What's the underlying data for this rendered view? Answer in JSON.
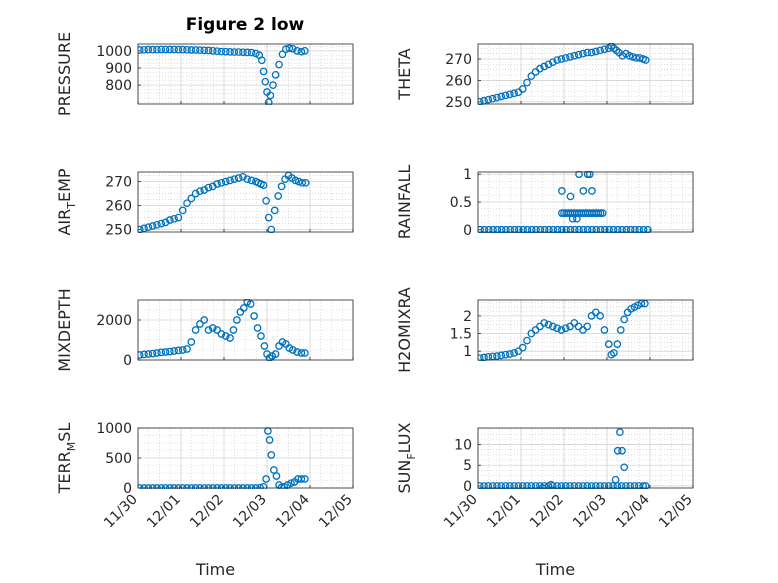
{
  "figure": {
    "title": "Figure 2 low",
    "marker_color": "#0072BD"
  },
  "chart_data": [
    {
      "type": "scatter",
      "ylabel": "PRESSURE",
      "ylim": [
        690,
        1040
      ],
      "yticks": [
        800,
        900,
        1000
      ],
      "xlim": [
        0,
        5
      ],
      "xlabel": "",
      "grid": true,
      "minor_grid": true,
      "x": [
        0.04,
        0.14,
        0.24,
        0.34,
        0.44,
        0.54,
        0.64,
        0.74,
        0.84,
        0.94,
        1.04,
        1.14,
        1.24,
        1.34,
        1.44,
        1.54,
        1.64,
        1.74,
        1.84,
        1.94,
        2.04,
        2.14,
        2.24,
        2.34,
        2.44,
        2.54,
        2.64,
        2.74,
        2.82,
        2.88,
        2.92,
        2.96,
        3.0,
        3.04,
        3.08,
        3.14,
        3.2,
        3.28,
        3.36,
        3.44,
        3.52,
        3.6,
        3.7,
        3.8,
        3.88
      ],
      "y": [
        1005,
        1006,
        1007,
        1007,
        1007,
        1008,
        1008,
        1008,
        1008,
        1007,
        1007,
        1006,
        1005,
        1005,
        1004,
        1003,
        1002,
        1000,
        998,
        996,
        995,
        994,
        993,
        993,
        992,
        991,
        990,
        985,
        975,
        945,
        880,
        820,
        760,
        700,
        740,
        800,
        860,
        920,
        980,
        1010,
        1015,
        1012,
        1000,
        995,
        1000
      ]
    },
    {
      "type": "scatter",
      "ylabel": "THETA",
      "ylim": [
        249,
        277
      ],
      "yticks": [
        250,
        260,
        270
      ],
      "xlim": [
        0,
        5
      ],
      "xlabel": "",
      "grid": true,
      "minor_grid": true,
      "x": [
        0.04,
        0.14,
        0.24,
        0.34,
        0.44,
        0.54,
        0.64,
        0.74,
        0.84,
        0.94,
        1.04,
        1.14,
        1.24,
        1.34,
        1.44,
        1.54,
        1.64,
        1.74,
        1.84,
        1.94,
        2.04,
        2.14,
        2.24,
        2.34,
        2.44,
        2.54,
        2.64,
        2.74,
        2.84,
        2.94,
        3.04,
        3.1,
        3.16,
        3.22,
        3.28,
        3.36,
        3.44,
        3.52,
        3.6,
        3.68,
        3.76,
        3.84,
        3.9
      ],
      "y": [
        250,
        250.5,
        251,
        251.5,
        252,
        252.5,
        253,
        253.5,
        254,
        254.5,
        256,
        259,
        262,
        264,
        265.5,
        266.5,
        267.5,
        268.5,
        269.5,
        270,
        270.5,
        271,
        271.5,
        272,
        272.5,
        273,
        273,
        273.5,
        274,
        274.5,
        275,
        276,
        275,
        274,
        273,
        271.5,
        272.5,
        271.5,
        271,
        270.5,
        270.5,
        270,
        269.5
      ]
    },
    {
      "type": "scatter",
      "ylabel": "AIR",
      "ylabel_sub": "T",
      "ylabel_rest": "EMP",
      "ylim": [
        249,
        274
      ],
      "yticks": [
        250,
        260,
        270
      ],
      "xlim": [
        0,
        5
      ],
      "xlabel": "",
      "grid": true,
      "minor_grid": true,
      "x": [
        0.04,
        0.14,
        0.24,
        0.34,
        0.44,
        0.54,
        0.64,
        0.74,
        0.84,
        0.94,
        1.04,
        1.14,
        1.24,
        1.34,
        1.44,
        1.54,
        1.64,
        1.74,
        1.84,
        1.94,
        2.04,
        2.14,
        2.24,
        2.34,
        2.44,
        2.54,
        2.64,
        2.74,
        2.8,
        2.86,
        2.92,
        2.98,
        3.04,
        3.1,
        3.18,
        3.26,
        3.34,
        3.42,
        3.5,
        3.58,
        3.66,
        3.74,
        3.82,
        3.9
      ],
      "y": [
        250,
        250.5,
        251,
        251.5,
        252,
        252.5,
        253,
        254,
        254.5,
        255,
        258,
        261,
        263,
        265,
        266,
        266.5,
        267.5,
        268,
        269,
        269.5,
        270,
        270.5,
        271,
        271.5,
        272,
        271,
        270.5,
        270,
        269.5,
        269,
        268.5,
        262,
        255,
        250,
        258,
        264,
        268,
        271,
        272.5,
        271.5,
        270.5,
        270,
        269.5,
        269.5
      ]
    },
    {
      "type": "scatter",
      "ylabel": "RAINFALL",
      "ylim": [
        -0.04,
        1.04
      ],
      "yticks": [
        0,
        0.5,
        1
      ],
      "xlim": [
        0,
        5
      ],
      "xlabel": "",
      "grid": true,
      "minor_grid": true,
      "x": [
        0.05,
        0.15,
        0.25,
        0.35,
        0.45,
        0.55,
        0.65,
        0.75,
        0.85,
        0.95,
        1.05,
        1.15,
        1.25,
        1.35,
        1.45,
        1.55,
        1.65,
        1.75,
        1.85,
        1.95,
        2.05,
        2.15,
        2.25,
        2.35,
        2.45,
        2.55,
        2.65,
        2.75,
        2.85,
        2.95,
        3.05,
        3.15,
        3.25,
        3.35,
        3.45,
        3.55,
        3.65,
        3.75,
        3.85,
        3.95,
        1.95,
        2.0,
        2.05,
        2.1,
        2.15,
        2.2,
        2.25,
        2.3,
        2.35,
        2.4,
        2.45,
        2.5,
        2.55,
        2.6,
        2.65,
        2.7,
        2.75,
        2.8,
        2.85,
        2.9,
        1.95,
        2.15,
        2.35,
        2.45,
        2.55,
        2.6,
        2.65,
        2.3,
        2.2
      ],
      "y": [
        0,
        0,
        0,
        0,
        0,
        0,
        0,
        0,
        0,
        0,
        0,
        0,
        0,
        0,
        0,
        0,
        0,
        0,
        0,
        0,
        0,
        0,
        0,
        0,
        0,
        0,
        0,
        0,
        0,
        0,
        0,
        0,
        0,
        0,
        0,
        0,
        0,
        0,
        0,
        0,
        0.3,
        0.3,
        0.3,
        0.3,
        0.3,
        0.3,
        0.3,
        0.3,
        0.3,
        0.3,
        0.3,
        0.3,
        0.3,
        0.3,
        0.3,
        0.3,
        0.3,
        0.3,
        0.3,
        0.3,
        0.7,
        0.6,
        1.0,
        0.7,
        1.0,
        1.0,
        0.7,
        0.2,
        0.2
      ]
    },
    {
      "type": "scatter",
      "ylabel": "MIXDEPTH",
      "ylim": [
        0,
        3000
      ],
      "yticks": [
        0,
        2000
      ],
      "xlim": [
        0,
        5
      ],
      "xlabel": "",
      "grid": true,
      "minor_grid": true,
      "x": [
        0.04,
        0.14,
        0.24,
        0.34,
        0.44,
        0.54,
        0.64,
        0.74,
        0.84,
        0.94,
        1.04,
        1.14,
        1.24,
        1.34,
        1.44,
        1.54,
        1.64,
        1.74,
        1.84,
        1.94,
        2.04,
        2.14,
        2.22,
        2.3,
        2.38,
        2.46,
        2.54,
        2.62,
        2.7,
        2.78,
        2.86,
        2.94,
        3.0,
        3.06,
        3.12,
        3.2,
        3.28,
        3.36,
        3.44,
        3.52,
        3.6,
        3.7,
        3.8,
        3.88
      ],
      "y": [
        250,
        280,
        300,
        320,
        350,
        380,
        400,
        420,
        450,
        480,
        500,
        550,
        900,
        1500,
        1800,
        2000,
        1500,
        1600,
        1500,
        1300,
        1200,
        1100,
        1500,
        2000,
        2400,
        2600,
        2900,
        2800,
        2200,
        1600,
        1200,
        700,
        300,
        100,
        200,
        300,
        700,
        900,
        800,
        600,
        500,
        400,
        350,
        350
      ]
    },
    {
      "type": "scatter",
      "ylabel": "H2OMIXRA",
      "ylim": [
        0.75,
        2.45
      ],
      "yticks": [
        1,
        1.5,
        2
      ],
      "xlim": [
        0,
        5
      ],
      "xlabel": "",
      "grid": true,
      "minor_grid": true,
      "x": [
        0.04,
        0.14,
        0.24,
        0.34,
        0.44,
        0.54,
        0.64,
        0.74,
        0.84,
        0.94,
        1.04,
        1.14,
        1.24,
        1.34,
        1.44,
        1.54,
        1.64,
        1.74,
        1.84,
        1.94,
        2.04,
        2.14,
        2.24,
        2.34,
        2.44,
        2.54,
        2.64,
        2.74,
        2.84,
        2.94,
        3.04,
        3.1,
        3.16,
        3.24,
        3.32,
        3.4,
        3.48,
        3.56,
        3.64,
        3.72,
        3.8,
        3.88
      ],
      "y": [
        0.8,
        0.82,
        0.84,
        0.85,
        0.86,
        0.88,
        0.9,
        0.92,
        0.95,
        1.0,
        1.1,
        1.3,
        1.5,
        1.6,
        1.7,
        1.8,
        1.75,
        1.7,
        1.65,
        1.6,
        1.65,
        1.7,
        1.8,
        1.7,
        1.6,
        1.7,
        2.0,
        2.1,
        2.0,
        1.6,
        1.2,
        0.9,
        0.95,
        1.2,
        1.6,
        1.9,
        2.1,
        2.2,
        2.25,
        2.3,
        2.35,
        2.35
      ]
    },
    {
      "type": "scatter",
      "ylabel": "TERR",
      "ylabel_sub": "M",
      "ylabel_rest": "SL",
      "ylim": [
        0,
        1000
      ],
      "yticks": [
        0,
        500,
        1000
      ],
      "xlim": [
        0,
        5
      ],
      "xlabel": "Time",
      "grid": true,
      "minor_grid": true,
      "xticks": [
        "11/30",
        "12/01",
        "12/02",
        "12/03",
        "12/04",
        "12/05"
      ],
      "x": [
        0.04,
        0.14,
        0.24,
        0.34,
        0.44,
        0.54,
        0.64,
        0.74,
        0.84,
        0.94,
        1.04,
        1.14,
        1.24,
        1.34,
        1.44,
        1.54,
        1.64,
        1.74,
        1.84,
        1.94,
        2.04,
        2.14,
        2.24,
        2.34,
        2.44,
        2.54,
        2.64,
        2.74,
        2.84,
        2.92,
        2.98,
        3.02,
        3.06,
        3.1,
        3.16,
        3.22,
        3.28,
        3.34,
        3.4,
        3.48,
        3.56,
        3.64,
        3.72,
        3.8,
        3.88
      ],
      "y": [
        0,
        0,
        0,
        0,
        0,
        0,
        0,
        0,
        0,
        0,
        0,
        0,
        0,
        0,
        0,
        0,
        0,
        0,
        0,
        0,
        0,
        0,
        0,
        0,
        0,
        0,
        0,
        0,
        5,
        20,
        150,
        950,
        800,
        550,
        300,
        200,
        50,
        10,
        20,
        50,
        80,
        100,
        150,
        150,
        150
      ]
    },
    {
      "type": "scatter",
      "ylabel": "SUN",
      "ylabel_sub": "F",
      "ylabel_rest": "LUX",
      "ylim": [
        -0.5,
        14
      ],
      "yticks": [
        0,
        5,
        10
      ],
      "xlim": [
        0,
        5
      ],
      "xlabel": "Time",
      "grid": true,
      "minor_grid": true,
      "xticks": [
        "11/30",
        "12/01",
        "12/02",
        "12/03",
        "12/04",
        "12/05"
      ],
      "x": [
        0.04,
        0.14,
        0.24,
        0.34,
        0.44,
        0.54,
        0.64,
        0.74,
        0.84,
        0.94,
        1.04,
        1.14,
        1.24,
        1.34,
        1.44,
        1.54,
        1.64,
        1.74,
        1.84,
        1.94,
        2.04,
        2.14,
        2.24,
        2.34,
        2.44,
        2.54,
        2.64,
        2.74,
        2.84,
        2.94,
        3.04,
        3.14,
        3.24,
        3.34,
        3.44,
        3.54,
        3.64,
        3.74,
        3.84,
        3.9,
        1.5,
        1.7,
        3.2,
        3.25,
        3.3,
        3.35,
        3.4
      ],
      "y": [
        0,
        0,
        0,
        0,
        0,
        0,
        0,
        0,
        0,
        0,
        0,
        0,
        0,
        0,
        0,
        0,
        0,
        0,
        0,
        0,
        0,
        0,
        0,
        0,
        0,
        0,
        0,
        0,
        0,
        0,
        0,
        0,
        0,
        0,
        0,
        0,
        0,
        0,
        0,
        0,
        -0.5,
        0.3,
        1.5,
        8.5,
        13,
        8.5,
        4.5
      ]
    }
  ]
}
